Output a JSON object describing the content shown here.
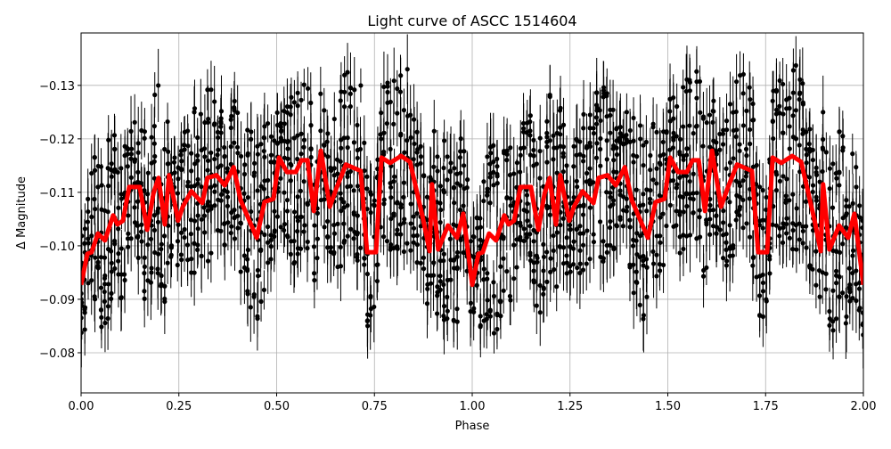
{
  "chart_data": {
    "type": "scatter",
    "title": "Light curve of ASCC 1514604",
    "xlabel": "Phase",
    "ylabel": "Δ Magnitude",
    "xlim": [
      0,
      2
    ],
    "ylim": [
      -0.0725,
      -0.1398
    ],
    "y_inverted": true,
    "grid": true,
    "x_ticks": [
      "0.00",
      "0.25",
      "0.50",
      "0.75",
      "1.00",
      "1.25",
      "1.50",
      "1.75",
      "2.00"
    ],
    "y_ticks": [
      "−0.13",
      "−0.12",
      "−0.11",
      "−0.10",
      "−0.09",
      "−0.08"
    ],
    "colors": {
      "points": "#000000",
      "model": "#ff0000",
      "grid": "#b0b0b0"
    },
    "series": [
      {
        "kind": "errorbar-points",
        "description_of_marks": "black points with vertical error bars, roughly spanning ±0.02 mag around the red curve"
      },
      {
        "kind": "line",
        "period": 1,
        "x": [
          0.0,
          0.016,
          0.027,
          0.043,
          0.061,
          0.082,
          0.093,
          0.107,
          0.123,
          0.15,
          0.169,
          0.185,
          0.198,
          0.214,
          0.225,
          0.248,
          0.26,
          0.282,
          0.31,
          0.323,
          0.346,
          0.367,
          0.39,
          0.408,
          0.449,
          0.469,
          0.492,
          0.506,
          0.526,
          0.549,
          0.563,
          0.579,
          0.595,
          0.613,
          0.636,
          0.654,
          0.677,
          0.715,
          0.731,
          0.754,
          0.768,
          0.79,
          0.818,
          0.841,
          0.875,
          0.891,
          0.897,
          0.913,
          0.938,
          0.961,
          0.977,
          1.0
        ],
        "y": [
          -0.0927,
          -0.0985,
          -0.0988,
          -0.1023,
          -0.101,
          -0.1057,
          -0.104,
          -0.1047,
          -0.111,
          -0.111,
          -0.103,
          -0.1098,
          -0.1127,
          -0.104,
          -0.1132,
          -0.1047,
          -0.1073,
          -0.1102,
          -0.108,
          -0.1127,
          -0.1132,
          -0.1113,
          -0.1147,
          -0.1085,
          -0.1015,
          -0.1082,
          -0.1088,
          -0.1165,
          -0.1138,
          -0.1138,
          -0.116,
          -0.116,
          -0.1065,
          -0.1178,
          -0.1073,
          -0.111,
          -0.1152,
          -0.114,
          -0.0988,
          -0.0988,
          -0.1165,
          -0.1155,
          -0.1168,
          -0.1157,
          -0.1048,
          -0.099,
          -0.1115,
          -0.0993,
          -0.1038,
          -0.1015,
          -0.106,
          -0.0927
        ]
      }
    ]
  }
}
